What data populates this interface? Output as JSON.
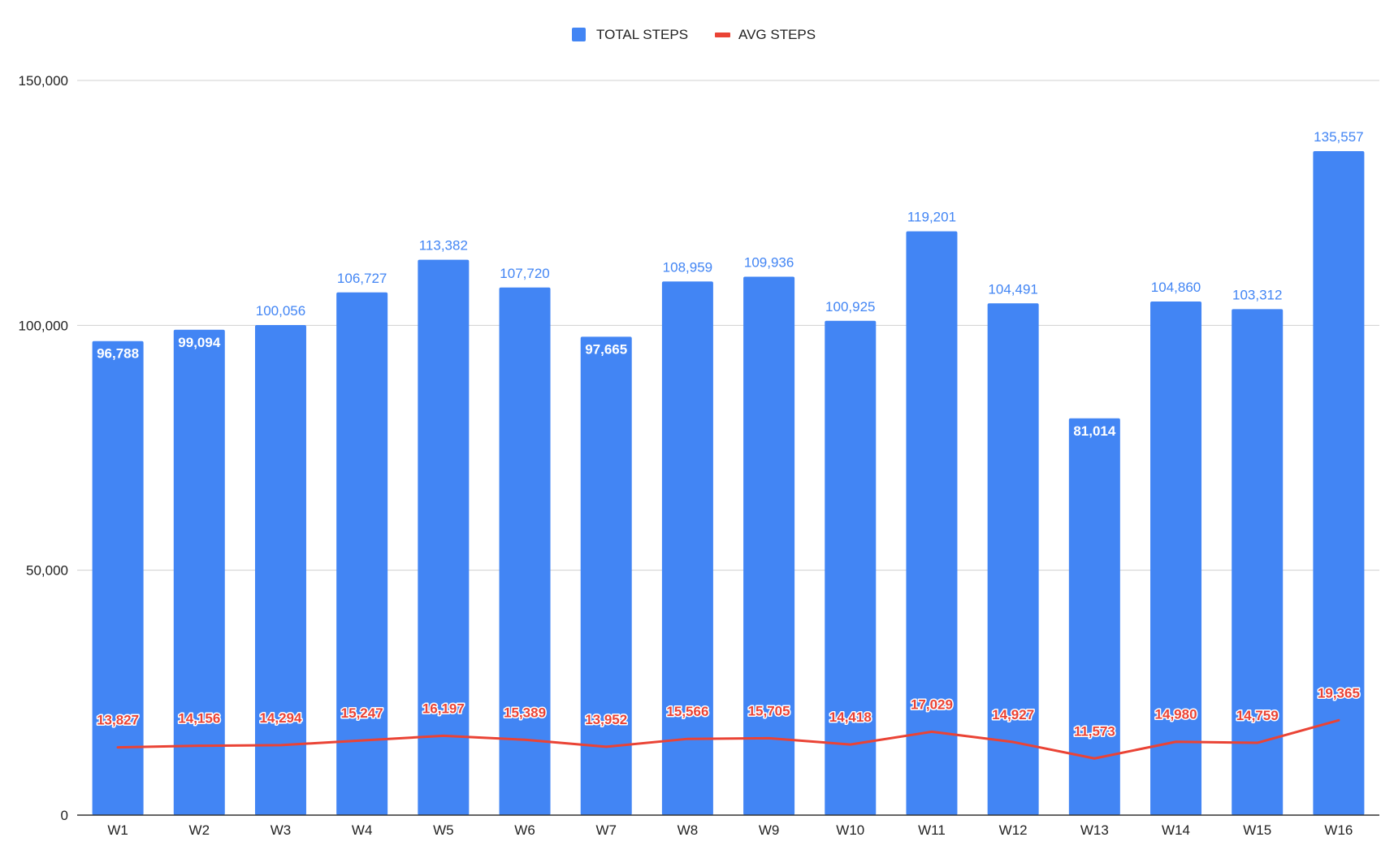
{
  "chart_data": {
    "type": "bar",
    "title": "",
    "xlabel": "",
    "ylabel": "",
    "ylim": [
      0,
      150000
    ],
    "yticks": [
      0,
      50000,
      100000,
      150000
    ],
    "ytick_labels": [
      "0",
      "50,000",
      "100,000",
      "150,000"
    ],
    "grid": true,
    "legend_position": "top-center",
    "categories": [
      "W1",
      "W2",
      "W3",
      "W4",
      "W5",
      "W6",
      "W7",
      "W8",
      "W9",
      "W10",
      "W11",
      "W12",
      "W13",
      "W14",
      "W15",
      "W16"
    ],
    "series": [
      {
        "name": "TOTAL STEPS",
        "type": "bar",
        "color": "#4285f4",
        "values": [
          96788,
          99094,
          100056,
          106727,
          113382,
          107720,
          97665,
          108959,
          109936,
          100925,
          119201,
          104491,
          81014,
          104860,
          103312,
          135557
        ],
        "labels": [
          "96,788",
          "99,094",
          "100,056",
          "106,727",
          "113,382",
          "107,720",
          "97,665",
          "108,959",
          "109,936",
          "100,925",
          "119,201",
          "104,491",
          "81,014",
          "104,860",
          "103,312",
          "135,557"
        ],
        "label_inside": [
          true,
          true,
          false,
          false,
          false,
          false,
          true,
          false,
          false,
          false,
          false,
          false,
          true,
          false,
          false,
          false
        ]
      },
      {
        "name": "AVG STEPS",
        "type": "line",
        "color": "#ea4335",
        "values": [
          13827,
          14156,
          14294,
          15247,
          16197,
          15389,
          13952,
          15566,
          15705,
          14418,
          17029,
          14927,
          11573,
          14980,
          14759,
          19365
        ],
        "labels": [
          "13,827",
          "14,156",
          "14,294",
          "15,247",
          "16,197",
          "15,389",
          "13,952",
          "15,566",
          "15,705",
          "14,418",
          "17,029",
          "14,927",
          "11,573",
          "14,980",
          "14,759",
          "19,365"
        ]
      }
    ],
    "colors": {
      "bar": "#4285f4",
      "line": "#ea4335",
      "bar_label_outside": "#4285f4",
      "bar_label_inside": "#ffffff"
    }
  }
}
